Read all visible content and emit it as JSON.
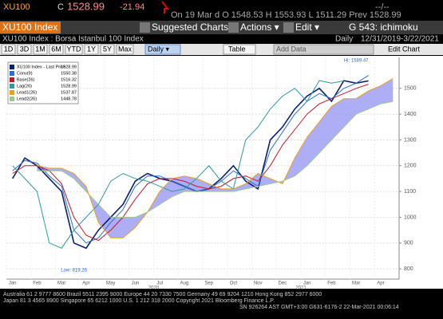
{
  "header": {
    "ticker": "XU100",
    "close_label": "C",
    "close": "1528.99",
    "change": "-21.94",
    "quote": "On 19 Mar d  O 1548.53  H 1553.93  L 1511.29  Prev 1528.99",
    "right": "--/--",
    "security": "XU100 Index",
    "suggested": "Suggested Charts",
    "actions": "Actions ▾",
    "edit": "Edit ▾",
    "template": "G 543: ichimoku",
    "description": "XU100 Index : Borsa Istanbul 100 Index",
    "frequency": "Daily",
    "range": "12/31/2019-3/22/2021"
  },
  "toolbar": {
    "periods": [
      "1D",
      "3D",
      "1M",
      "6M",
      "YTD",
      "1Y",
      "5Y",
      "Max"
    ],
    "interval": "Daily ▾",
    "table": "Table",
    "add_data": "Add Data",
    "edit_chart": "Edit Chart"
  },
  "footer": [
    "Australia 61 2 9777 8600 Brazil 5511 2395 9000 Europe 44 20 7330 7500 Germany 49 69 9204 1210 Hong Kong 852 2977 6000",
    "Japan 81 3 4565 8900    Singapore 65 6212 1000    U.S. 1 212 318 2000    Copyright 2021 Bloomberg Finance L.P.",
    "SN 926264 AST GMT+3:00 G631-6176-2 22-Mar-2021 00:06:14"
  ],
  "chart_data": {
    "type": "line",
    "categories": [
      "Jan",
      null,
      "Feb",
      null,
      "Mar",
      null,
      "Apr",
      null,
      "May",
      null,
      "Jun",
      null,
      "Jul",
      null,
      "Aug",
      null,
      "Sep",
      null,
      "Oct",
      null,
      "Nov",
      null,
      "Dec",
      null,
      "Jan",
      null,
      "Feb",
      null,
      "Mar",
      null,
      "Apr",
      null
    ],
    "years": [
      {
        "index": 12,
        "label": "2020"
      },
      {
        "index": 24,
        "label": "2021"
      }
    ],
    "ylim": [
      760,
      1620
    ],
    "yticks": [
      800,
      900,
      1000,
      1100,
      1200,
      1300,
      1400,
      1500
    ],
    "grid": true,
    "legend": "upper left",
    "cloud_color": "#9a9af5",
    "annotations": [
      {
        "text": "Hi: 1589.47",
        "index": 28,
        "value": 1589.47
      },
      {
        "text": "Low: 819.26",
        "index": 5,
        "value": 819.26
      }
    ],
    "series": [
      {
        "name": "XU100 Index - Last Price",
        "last": 1528.99,
        "color": "#0a1f6e",
        "values": [
          1150,
          1230,
          1200,
          1150,
          1100,
          900,
          880,
          950,
          1000,
          1050,
          1140,
          1170,
          1150,
          1140,
          1120,
          1100,
          1110,
          1150,
          1200,
          1140,
          1110,
          1300,
          1350,
          1420,
          1470,
          1500,
          1450,
          1530,
          1520,
          1529,
          null,
          null
        ]
      },
      {
        "name": "Conv(9)",
        "last": 1550.38,
        "color": "#2b6fd6",
        "values": [
          1180,
          1220,
          1210,
          1160,
          1120,
          950,
          900,
          920,
          980,
          1030,
          1120,
          1160,
          1160,
          1140,
          1120,
          1100,
          1110,
          1140,
          1180,
          1150,
          1120,
          1260,
          1330,
          1400,
          1450,
          1480,
          1460,
          1500,
          1520,
          1550,
          null,
          null
        ]
      },
      {
        "name": "Base(26)",
        "last": 1516.32,
        "color": "#c0182a",
        "values": [
          1170,
          1200,
          1200,
          1180,
          1130,
          1000,
          930,
          910,
          950,
          1000,
          1070,
          1130,
          1150,
          1150,
          1140,
          1120,
          1110,
          1120,
          1150,
          1160,
          1140,
          1200,
          1280,
          1340,
          1400,
          1440,
          1460,
          1480,
          1500,
          1516,
          null,
          null
        ]
      },
      {
        "name": "Lag(26)",
        "last": 1528.99,
        "color": "#2e9a9a",
        "values": [
          1200,
          1150,
          1100,
          900,
          880,
          950,
          1000,
          1050,
          1140,
          1170,
          1150,
          1140,
          1120,
          1100,
          1110,
          1150,
          1200,
          1140,
          1110,
          1300,
          1350,
          1420,
          1470,
          1500,
          1450,
          1530,
          1520,
          1529,
          null,
          null,
          null,
          null
        ]
      },
      {
        "name": "Lead1(26)",
        "last": 1537.87,
        "color": "#e8a020",
        "values": [
          null,
          null,
          1200,
          1190,
          1190,
          1170,
          1120,
          980,
          920,
          920,
          960,
          1020,
          1100,
          1150,
          1160,
          1150,
          1130,
          1110,
          1110,
          1130,
          1170,
          1150,
          1130,
          1230,
          1310,
          1370,
          1430,
          1460,
          1460,
          1490,
          1510,
          1538
        ]
      },
      {
        "name": "Lead2(26)",
        "last": 1448.78,
        "color": "#9cc98a",
        "values": [
          null,
          null,
          1180,
          1180,
          1180,
          1150,
          1100,
          1050,
          1000,
          1000,
          1000,
          1020,
          1050,
          1080,
          1100,
          1100,
          1100,
          1100,
          1100,
          1110,
          1120,
          1130,
          1140,
          1160,
          1200,
          1250,
          1300,
          1350,
          1400,
          1420,
          1440,
          1449
        ]
      }
    ]
  }
}
